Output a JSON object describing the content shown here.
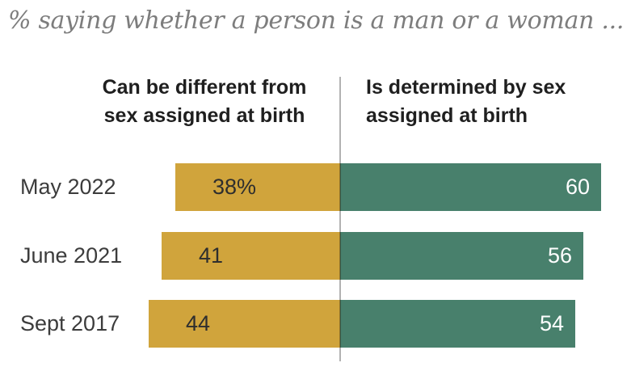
{
  "title": "% saying whether a person is a man or a woman ...",
  "headers": {
    "left": {
      "line1": "Can be different from",
      "line2": "sex assigned at birth"
    },
    "right": {
      "line1": "Is determined by sex",
      "line2": "assigned at birth"
    }
  },
  "chart_data": {
    "type": "bar",
    "orientation": "horizontal_diverging",
    "title": "% saying whether a person is a man or a woman ...",
    "categories": [
      "May 2022",
      "June 2021",
      "Sept 2017"
    ],
    "series": [
      {
        "name": "Can be different from sex assigned at birth",
        "side": "left",
        "color": "#D0A43C",
        "values": [
          38,
          41,
          44
        ],
        "value_labels": [
          "38%",
          "41",
          "44"
        ]
      },
      {
        "name": "Is determined by sex assigned at birth",
        "side": "right",
        "color": "#48806C",
        "values": [
          60,
          56,
          54
        ],
        "value_labels": [
          "60",
          "56",
          "54"
        ]
      }
    ],
    "xlabel": "",
    "ylabel": "",
    "value_unit": "percent",
    "axis_ticks": "none",
    "grid": false,
    "legend_position": "column-headers"
  },
  "colors": {
    "left_bar": "#D0A43C",
    "right_bar": "#48806C",
    "title_text": "#7D7D7D",
    "header_text": "#1F1F1F",
    "category_label_text": "#3C3C3C",
    "value_text_on_gold": "#2E2E2E",
    "value_text_on_green": "#FFFFFF",
    "divider_line": "#B3B3B3",
    "background": "#FFFFFF"
  }
}
